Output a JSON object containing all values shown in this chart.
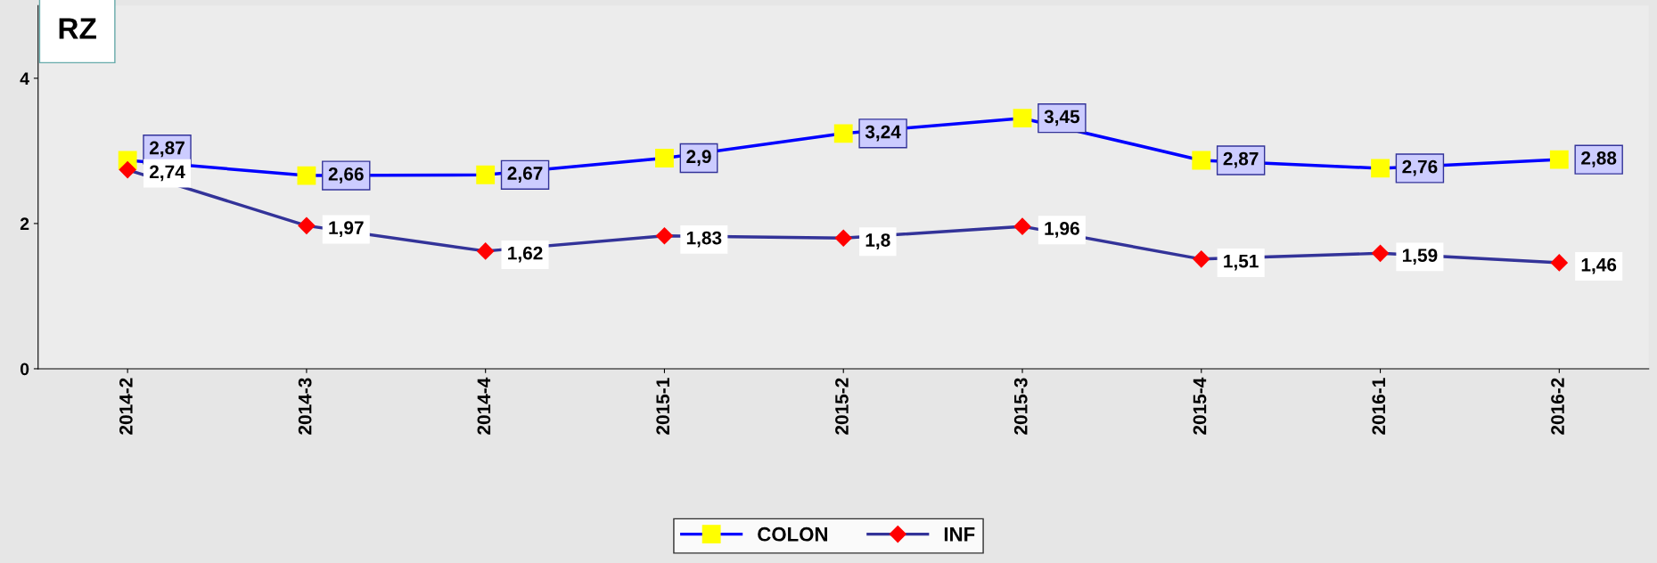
{
  "chart_data": {
    "type": "line",
    "title": "RZ",
    "categories": [
      "2014-2",
      "2014-3",
      "2014-4",
      "2015-1",
      "2015-2",
      "2015-3",
      "2015-4",
      "2016-1",
      "2016-2"
    ],
    "series": [
      {
        "name": "COLON",
        "color": "#0000ff",
        "colors": [
          "#ffff00",
          "#ffff00",
          "#ffff00",
          "#ffff00",
          "#ffff00",
          "#ffff00",
          "#ffff00",
          "#ffff00",
          "#ffff00"
        ],
        "marker": "square",
        "values": [
          2.87,
          2.66,
          2.67,
          2.9,
          3.24,
          3.45,
          2.87,
          2.76,
          2.88
        ],
        "value_labels": [
          "2,87",
          "2,66",
          "2,67",
          "2,9",
          "3,24",
          "3,45",
          "2,87",
          "2,76",
          "2,88"
        ]
      },
      {
        "name": "INF",
        "color": "#333399",
        "colors": [
          "#ff0000",
          "#ff0000",
          "#ff0000",
          "#ff0000",
          "#ff0000",
          "#ff0000",
          "#ff0000",
          "#ff0000",
          "#ff0000"
        ],
        "marker": "diamond",
        "values": [
          2.74,
          1.97,
          1.62,
          1.83,
          1.8,
          1.96,
          1.51,
          1.59,
          1.46
        ],
        "value_labels": [
          "2,74",
          "1,97",
          "1,62",
          "1,83",
          "1,8",
          "1,96",
          "1,51",
          "1,59",
          "1,46"
        ]
      }
    ],
    "ylim": [
      0,
      5
    ],
    "yticks": [
      0,
      2,
      4
    ],
    "grid": false,
    "legend": "bottom",
    "line_style": "solid"
  }
}
